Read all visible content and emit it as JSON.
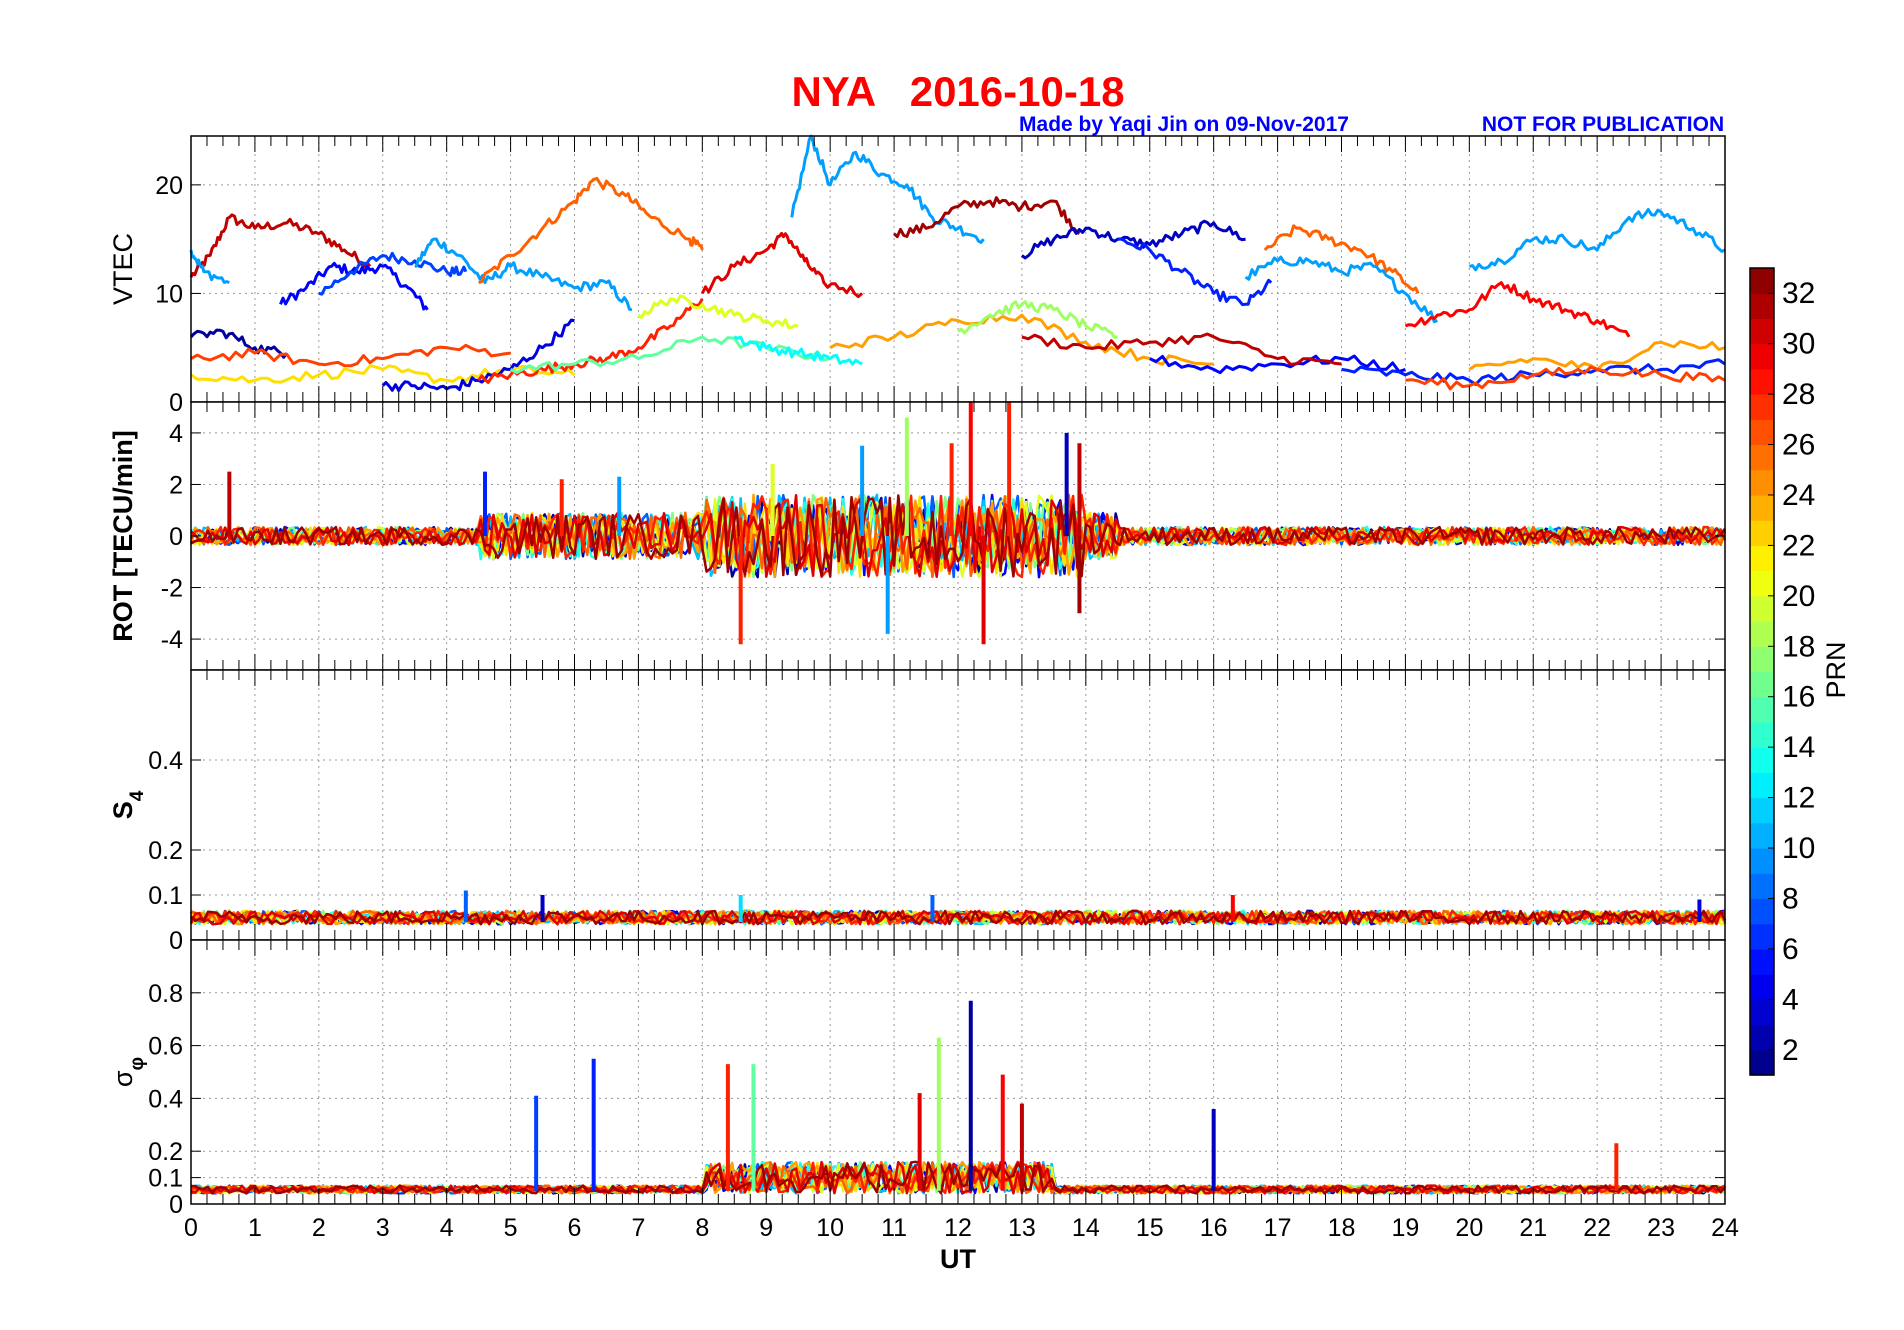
{
  "header": {
    "title": "NYA   2016-10-18",
    "credit": "Made by Yaqi Jin on 09-Nov-2017",
    "notice": "NOT FOR PUBLICATION",
    "title_color": "#ff0000",
    "credit_color": "#0000ff"
  },
  "chart_data": {
    "type": "line",
    "xlabel": "UT",
    "xlim": [
      0,
      24
    ],
    "x_ticks": [
      "0",
      "1",
      "2",
      "3",
      "4",
      "5",
      "6",
      "7",
      "8",
      "9",
      "10",
      "11",
      "12",
      "13",
      "14",
      "15",
      "16",
      "17",
      "18",
      "19",
      "20",
      "21",
      "22",
      "23",
      "24"
    ],
    "grid": true,
    "panels": [
      {
        "name": "vtec",
        "ylabel": "VTEC",
        "ylim": [
          0,
          24.5
        ],
        "y_ticks": [
          "0",
          "10",
          "20"
        ],
        "y_tick_values": [
          0,
          10,
          20
        ],
        "series": [
          {
            "prn": 31,
            "x": [
              0,
              0.3,
              0.6,
              1.0,
              1.5,
              2.0,
              2.4,
              2.8
            ],
            "y": [
              11.5,
              13.5,
              17,
              16,
              16.5,
              15.5,
              14,
              12.5
            ]
          },
          {
            "prn": 10,
            "x": [
              0,
              0.2,
              0.6
            ],
            "y": [
              14,
              12,
              11
            ]
          },
          {
            "prn": 5,
            "x": [
              1.4,
              1.8,
              2.2,
              2.6,
              3.0,
              3.4,
              3.7
            ],
            "y": [
              9,
              10.5,
              12.5,
              12,
              12.5,
              10.5,
              8.5
            ]
          },
          {
            "prn": 7,
            "x": [
              2.0,
              2.5,
              3.0,
              3.5,
              4.0,
              4.3
            ],
            "y": [
              10,
              12,
              13.5,
              13,
              12,
              12
            ]
          },
          {
            "prn": 10,
            "x": [
              3.5,
              3.8,
              4.2,
              4.6,
              5.0,
              5.5,
              6.0,
              6.5,
              6.9
            ],
            "y": [
              12.5,
              15,
              13.5,
              11,
              12.5,
              11.5,
              10.5,
              11,
              8.5
            ]
          },
          {
            "prn": 26,
            "x": [
              4.5,
              5.0,
              5.5,
              6.0,
              6.3,
              6.8,
              7.2,
              7.8,
              8.0
            ],
            "y": [
              11,
              13.5,
              16,
              18.5,
              20.5,
              19,
              17,
              15,
              14
            ]
          },
          {
            "prn": 10,
            "x": [
              9.4,
              9.7,
              10.0,
              10.4,
              10.8,
              11.2,
              11.6,
              12.0,
              12.4
            ],
            "y": [
              17,
              24.5,
              20,
              23,
              21,
              20,
              17,
              16,
              15
            ]
          },
          {
            "prn": 30,
            "x": [
              8.0,
              8.5,
              9.0,
              9.3,
              9.6,
              9.9,
              10.5
            ],
            "y": [
              10,
              12.5,
              14,
              15.5,
              13,
              11,
              10
            ]
          },
          {
            "prn": 32,
            "x": [
              11.0,
              11.5,
              12.0,
              12.5,
              13.0,
              13.5,
              13.9
            ],
            "y": [
              15.5,
              16,
              18,
              18.5,
              18,
              18.5,
              15.5
            ]
          },
          {
            "prn": 3,
            "x": [
              13.0,
              13.5,
              14.0,
              14.5,
              15.0,
              15.5,
              16.0,
              16.5
            ],
            "y": [
              13.5,
              15,
              16,
              15,
              14.5,
              15.5,
              16.5,
              15
            ]
          },
          {
            "prn": 6,
            "x": [
              14.5,
              15.0,
              15.5,
              16.0,
              16.5,
              16.9
            ],
            "y": [
              15,
              14,
              12,
              10,
              9,
              11
            ]
          },
          {
            "prn": 26,
            "x": [
              16.8,
              17.3,
              17.8,
              18.3,
              18.8,
              19.2
            ],
            "y": [
              14,
              16,
              15,
              14,
              12,
              10
            ]
          },
          {
            "prn": 10,
            "x": [
              16.5,
              17.0,
              17.5,
              18.0,
              18.5,
              19.0,
              19.5
            ],
            "y": [
              11.5,
              13,
              13,
              12,
              12.5,
              10,
              7.5
            ]
          },
          {
            "prn": 29,
            "x": [
              19.0,
              19.5,
              20.0,
              20.5,
              21.0,
              21.5,
              22.0,
              22.5
            ],
            "y": [
              7,
              8,
              8.5,
              11,
              9.5,
              8.5,
              7.5,
              6
            ]
          },
          {
            "prn": 10,
            "x": [
              20.0,
              20.5,
              21.0,
              21.5,
              22.0,
              22.5,
              23.0,
              23.5,
              24.0
            ],
            "y": [
              12.5,
              13,
              15,
              15,
              14,
              17,
              17.5,
              16,
              14
            ]
          },
          {
            "prn": 2,
            "x": [
              0,
              0.5,
              1.0,
              1.5
            ],
            "y": [
              6,
              6.5,
              5,
              4.5
            ]
          },
          {
            "prn": 22,
            "x": [
              0,
              1,
              2,
              3,
              4,
              5,
              6
            ],
            "y": [
              2.5,
              2,
              2.5,
              3,
              2,
              3,
              2.5
            ]
          },
          {
            "prn": 27,
            "x": [
              0,
              1,
              2,
              3,
              4,
              5
            ],
            "y": [
              4,
              4.5,
              3.5,
              4,
              5,
              4.5
            ]
          },
          {
            "prn": 4,
            "x": [
              3.0,
              3.5,
              4.0,
              4.5,
              5.0,
              5.5,
              6.0
            ],
            "y": [
              1.5,
              1.5,
              1.2,
              2,
              3,
              5,
              7.5
            ]
          },
          {
            "prn": 28,
            "x": [
              4.5,
              5.0,
              5.5,
              6.0,
              6.5,
              7.0,
              7.5,
              8.0
            ],
            "y": [
              2,
              2.5,
              3,
              3.5,
              4,
              5,
              7,
              9.5
            ]
          },
          {
            "prn": 16,
            "x": [
              5,
              6,
              7,
              8,
              9,
              10
            ],
            "y": [
              3,
              3.5,
              4,
              6,
              5,
              4
            ]
          },
          {
            "prn": 20,
            "x": [
              7.0,
              7.5,
              8.0,
              8.5,
              9.0,
              9.5
            ],
            "y": [
              8,
              9.5,
              9,
              8,
              7.5,
              7
            ]
          },
          {
            "prn": 13,
            "x": [
              8.5,
              9.0,
              9.5,
              10.0,
              10.5
            ],
            "y": [
              6,
              5,
              4.5,
              4,
              3.5
            ]
          },
          {
            "prn": 24,
            "x": [
              10,
              11,
              12,
              13,
              14,
              15,
              16
            ],
            "y": [
              5,
              6,
              7.5,
              8,
              5.5,
              4,
              3.5
            ]
          },
          {
            "prn": 18,
            "x": [
              12.0,
              12.5,
              13.0,
              13.5,
              14.0,
              14.5
            ],
            "y": [
              6.5,
              8,
              9,
              8.5,
              7,
              6
            ]
          },
          {
            "prn": 5,
            "x": [
              15,
              16,
              17,
              18,
              19
            ],
            "y": [
              4,
              3,
              3.5,
              4,
              3
            ]
          },
          {
            "prn": 31,
            "x": [
              13,
              14,
              15,
              16,
              17,
              18
            ],
            "y": [
              6,
              5,
              5.5,
              6,
              4,
              3.5
            ]
          },
          {
            "prn": 6,
            "x": [
              18,
              19,
              20,
              21,
              22,
              23,
              24
            ],
            "y": [
              3,
              2.5,
              2,
              2.5,
              3,
              3,
              3.5
            ]
          },
          {
            "prn": 24,
            "x": [
              20,
              21,
              22,
              23,
              24
            ],
            "y": [
              3,
              4,
              3,
              5.5,
              5
            ]
          },
          {
            "prn": 27,
            "x": [
              19,
              20,
              21,
              22,
              23,
              24
            ],
            "y": [
              2,
              1.5,
              2.5,
              3,
              2.5,
              2
            ]
          }
        ]
      },
      {
        "name": "rot",
        "ylabel": "ROT [TECU/min]",
        "ylim": [
          -5.2,
          5.2
        ],
        "y_ticks": [
          "-4",
          "-2",
          "0",
          "2",
          "4"
        ],
        "y_tick_values": [
          -4,
          -2,
          0,
          2,
          4
        ],
        "peaks": [
          {
            "x": 0.6,
            "y": 2.5,
            "prn": 31
          },
          {
            "x": 4.6,
            "y": 2.5,
            "prn": 6
          },
          {
            "x": 5.8,
            "y": 2.2,
            "prn": 28
          },
          {
            "x": 6.7,
            "y": 2.3,
            "prn": 10
          },
          {
            "x": 8.6,
            "y": -4.2,
            "prn": 28
          },
          {
            "x": 9.1,
            "y": 2.8,
            "prn": 20
          },
          {
            "x": 10.5,
            "y": 3.5,
            "prn": 10
          },
          {
            "x": 10.9,
            "y": -3.8,
            "prn": 10
          },
          {
            "x": 11.2,
            "y": 4.6,
            "prn": 18
          },
          {
            "x": 11.9,
            "y": 3.6,
            "prn": 28
          },
          {
            "x": 12.2,
            "y": 5.2,
            "prn": 29
          },
          {
            "x": 12.4,
            "y": -4.2,
            "prn": 30
          },
          {
            "x": 12.8,
            "y": 5.2,
            "prn": 28
          },
          {
            "x": 13.7,
            "y": 4.0,
            "prn": 3
          },
          {
            "x": 13.9,
            "y": -3.0,
            "prn": 32
          },
          {
            "x": 13.9,
            "y": 3.6,
            "prn": 31
          }
        ]
      },
      {
        "name": "s4",
        "ylabel": "S4",
        "ylim": [
          0,
          0.6
        ],
        "y_ticks": [
          "0",
          "0.1",
          "0.2",
          "0.4"
        ],
        "y_tick_values": [
          0,
          0.1,
          0.2,
          0.4
        ],
        "peaks": [
          {
            "x": 4.3,
            "y": 0.11,
            "prn": 8
          },
          {
            "x": 5.5,
            "y": 0.1,
            "prn": 3
          },
          {
            "x": 8.6,
            "y": 0.1,
            "prn": 12
          },
          {
            "x": 11.6,
            "y": 0.1,
            "prn": 8
          },
          {
            "x": 16.3,
            "y": 0.1,
            "prn": 29
          },
          {
            "x": 23.6,
            "y": 0.09,
            "prn": 4
          }
        ]
      },
      {
        "name": "sigma_phi",
        "ylabel": "σφ",
        "ylim": [
          0,
          1.0
        ],
        "y_ticks": [
          "0",
          "0.1",
          "0.2",
          "0.4",
          "0.6",
          "0.8"
        ],
        "y_tick_values": [
          0,
          0.1,
          0.2,
          0.4,
          0.6,
          0.8
        ],
        "peaks": [
          {
            "x": 5.4,
            "y": 0.41,
            "prn": 7
          },
          {
            "x": 6.3,
            "y": 0.55,
            "prn": 6
          },
          {
            "x": 8.4,
            "y": 0.53,
            "prn": 28
          },
          {
            "x": 8.8,
            "y": 0.53,
            "prn": 16
          },
          {
            "x": 11.4,
            "y": 0.42,
            "prn": 30
          },
          {
            "x": 11.7,
            "y": 0.63,
            "prn": 18
          },
          {
            "x": 12.2,
            "y": 0.77,
            "prn": 2
          },
          {
            "x": 12.7,
            "y": 0.49,
            "prn": 29
          },
          {
            "x": 13.0,
            "y": 0.38,
            "prn": 31
          },
          {
            "x": 16.0,
            "y": 0.36,
            "prn": 3
          },
          {
            "x": 22.3,
            "y": 0.23,
            "prn": 28
          }
        ]
      }
    ],
    "colorbar": {
      "label": "PRN",
      "min": 1,
      "max": 33,
      "ticks": [
        "2",
        "4",
        "6",
        "8",
        "10",
        "12",
        "14",
        "16",
        "18",
        "20",
        "22",
        "24",
        "26",
        "28",
        "30",
        "32"
      ],
      "tick_values": [
        2,
        4,
        6,
        8,
        10,
        12,
        14,
        16,
        18,
        20,
        22,
        24,
        26,
        28,
        30,
        32
      ],
      "colormap": "jet"
    }
  }
}
